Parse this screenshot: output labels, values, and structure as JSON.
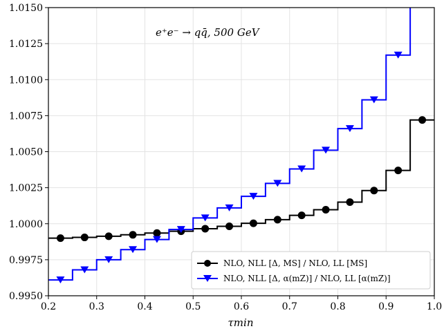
{
  "chart_data": {
    "type": "line",
    "title": "e⁺e⁻ → qq̄, 500 GeV",
    "xlabel": "τmin",
    "ylabel": "",
    "xlim": [
      0.2,
      1.0
    ],
    "ylim": [
      0.995,
      1.015
    ],
    "x_ticks": [
      0.2,
      0.3,
      0.4,
      0.5,
      0.6,
      0.7,
      0.8,
      0.9,
      1.0
    ],
    "x_tick_labels": [
      "0.2",
      "0.3",
      "0.4",
      "0.5",
      "0.6",
      "0.7",
      "0.8",
      "0.9",
      "1.0"
    ],
    "y_ticks": [
      0.995,
      0.9975,
      1.0,
      1.0025,
      1.005,
      1.0075,
      1.01,
      1.0125,
      1.015
    ],
    "y_tick_labels": [
      "0.9950",
      "0.9975",
      "1.0000",
      "1.0025",
      "1.0050",
      "1.0075",
      "1.0100",
      "1.0125",
      "1.0150"
    ],
    "grid": true,
    "legend_position": "bottom-right",
    "bin_edges": [
      0.2,
      0.25,
      0.3,
      0.35,
      0.4,
      0.45,
      0.5,
      0.55,
      0.6,
      0.65,
      0.7,
      0.75,
      0.8,
      0.85,
      0.9,
      0.95,
      1.0
    ],
    "series": [
      {
        "name": "NLO, NLL [Δ, MS] / NLO, LL [MS]",
        "color": "#000000",
        "marker": "circle",
        "x": [
          0.225,
          0.275,
          0.325,
          0.375,
          0.425,
          0.475,
          0.525,
          0.575,
          0.625,
          0.675,
          0.725,
          0.775,
          0.825,
          0.875,
          0.925,
          0.975
        ],
        "values": [
          0.999,
          0.99905,
          0.99913,
          0.99923,
          0.99935,
          0.99948,
          0.99965,
          0.99982,
          1.00003,
          1.00028,
          1.00058,
          1.00097,
          1.0015,
          1.0023,
          1.0037,
          1.0072
        ]
      },
      {
        "name": "NLO, NLL [Δ, α(mZ)] / NLO, LL [α(mZ)]",
        "color": "#0000ff",
        "marker": "triangle-down",
        "x": [
          0.225,
          0.275,
          0.325,
          0.375,
          0.425,
          0.475,
          0.525,
          0.575,
          0.625,
          0.675,
          0.725,
          0.775,
          0.825,
          0.875,
          0.925
        ],
        "values": [
          0.9961,
          0.9968,
          0.9975,
          0.9982,
          0.9989,
          0.9996,
          1.0004,
          1.0011,
          1.0019,
          1.0028,
          1.0038,
          1.0051,
          1.0066,
          1.0086,
          1.0117
        ],
        "last_bin_value": 1.0155
      }
    ]
  }
}
